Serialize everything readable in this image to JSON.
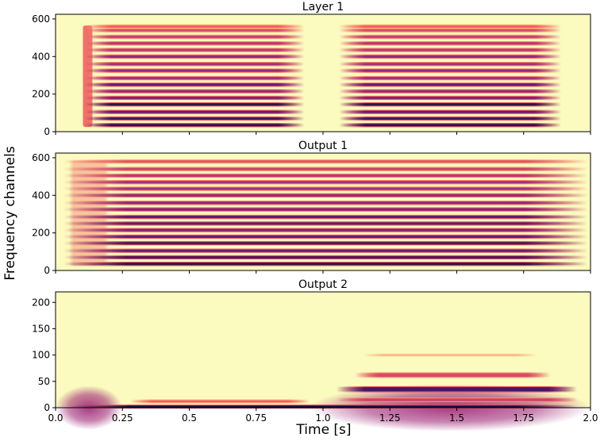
{
  "chart_data": {
    "type": "heatmap",
    "colormap": "magma",
    "background_color": "#fbfbbf",
    "xlabel": "Time [s]",
    "ylabel": "Frequency channels",
    "xlim": [
      0.0,
      2.0
    ],
    "x_ticks": [
      0.0,
      0.25,
      0.5,
      0.75,
      1.0,
      1.25,
      1.5,
      1.75,
      2.0
    ],
    "x_tick_labels": [
      "0.0",
      "0.25",
      "0.5",
      "0.75",
      "1.0",
      "1.25",
      "1.5",
      "1.75",
      "2.0"
    ],
    "panels": [
      {
        "title": "Layer 1",
        "ylim": [
          0,
          625
        ],
        "y_ticks": [
          0,
          200,
          400,
          600
        ],
        "y_tick_labels": [
          "0",
          "200",
          "400",
          "600"
        ],
        "bands": [
          {
            "channel": 35,
            "intensity": 0.95
          },
          {
            "channel": 70,
            "intensity": 0.9
          },
          {
            "channel": 105,
            "intensity": 0.85
          },
          {
            "channel": 145,
            "intensity": 0.95
          },
          {
            "channel": 180,
            "intensity": 0.8
          },
          {
            "channel": 215,
            "intensity": 0.75
          },
          {
            "channel": 250,
            "intensity": 0.85
          },
          {
            "channel": 285,
            "intensity": 0.7
          },
          {
            "channel": 325,
            "intensity": 0.75
          },
          {
            "channel": 360,
            "intensity": 0.7
          },
          {
            "channel": 400,
            "intensity": 0.75
          },
          {
            "channel": 435,
            "intensity": 0.65
          },
          {
            "channel": 470,
            "intensity": 0.65
          },
          {
            "channel": 505,
            "intensity": 0.6
          },
          {
            "channel": 540,
            "intensity": 0.55
          },
          {
            "channel": 560,
            "intensity": 0.45
          }
        ],
        "segments": [
          [
            0.11,
            0.93
          ],
          [
            1.06,
            1.89
          ]
        ],
        "onset_burst": [
          0.1,
          0.14
        ]
      },
      {
        "title": "Output 1",
        "ylim": [
          0,
          625
        ],
        "y_ticks": [
          0,
          200,
          400,
          600
        ],
        "y_tick_labels": [
          "0",
          "200",
          "400",
          "600"
        ],
        "bands": [
          {
            "channel": 35,
            "intensity": 0.95
          },
          {
            "channel": 70,
            "intensity": 0.9
          },
          {
            "channel": 105,
            "intensity": 0.85
          },
          {
            "channel": 145,
            "intensity": 0.9
          },
          {
            "channel": 180,
            "intensity": 0.85
          },
          {
            "channel": 215,
            "intensity": 0.8
          },
          {
            "channel": 250,
            "intensity": 0.85
          },
          {
            "channel": 285,
            "intensity": 0.85
          },
          {
            "channel": 325,
            "intensity": 0.8
          },
          {
            "channel": 360,
            "intensity": 0.75
          },
          {
            "channel": 400,
            "intensity": 0.75
          },
          {
            "channel": 435,
            "intensity": 0.7
          },
          {
            "channel": 470,
            "intensity": 0.7
          },
          {
            "channel": 505,
            "intensity": 0.65
          },
          {
            "channel": 540,
            "intensity": 0.6
          },
          {
            "channel": 580,
            "intensity": 0.5
          }
        ],
        "segments": [
          [
            0.03,
            1.99
          ]
        ],
        "onset_burst": [
          0.05,
          0.2
        ]
      },
      {
        "title": "Output 2",
        "ylim": [
          0,
          220
        ],
        "y_ticks": [
          0,
          50,
          100,
          150,
          200
        ],
        "y_tick_labels": [
          "0",
          "50",
          "100",
          "150",
          "200"
        ],
        "bands": [
          {
            "channel": 2,
            "x": [
              0.05,
              1.95
            ],
            "intensity": 1.0,
            "width": 4
          },
          {
            "channel": 12,
            "x": [
              0.28,
              0.95
            ],
            "intensity": 0.45,
            "width": 4
          },
          {
            "channel": 15,
            "x": [
              1.05,
              1.95
            ],
            "intensity": 0.6,
            "width": 5
          },
          {
            "channel": 35,
            "x": [
              1.05,
              1.95
            ],
            "intensity": 0.9,
            "width": 8
          },
          {
            "channel": 62,
            "x": [
              1.12,
              1.85
            ],
            "intensity": 0.55,
            "width": 7
          },
          {
            "channel": 100,
            "x": [
              1.15,
              1.8
            ],
            "intensity": 0.25,
            "width": 2
          }
        ],
        "blobs": [
          {
            "x": [
              0.0,
              0.25
            ],
            "y": [
              0,
              42
            ],
            "intensity": 0.7
          },
          {
            "x": [
              0.95,
              2.0
            ],
            "y": [
              0,
              45
            ],
            "intensity": 0.7
          }
        ]
      }
    ]
  }
}
